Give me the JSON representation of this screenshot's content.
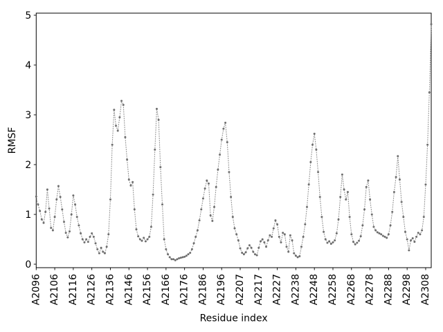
{
  "figure": {
    "background": "#ffffff",
    "spine_color": "#000000",
    "line_color": "#8f8f8f",
    "marker_color": "#6e6e6e",
    "text_color": "#000000"
  },
  "chart_data": {
    "type": "line",
    "title": "",
    "xlabel": "Residue index",
    "ylabel": "RMSF",
    "linestyle": "dotted",
    "marker": "point",
    "grid": false,
    "legend": null,
    "ylim": [
      -0.07,
      5.04
    ],
    "y_ticks": [
      0,
      1,
      2,
      3,
      4,
      5
    ],
    "x_tick_step": 10,
    "x_tick_labels": [
      "A2096",
      "A2106",
      "A2116",
      "A2126",
      "A2136",
      "A2146",
      "A2156",
      "A2166",
      "A2176",
      "A2186",
      "A2196",
      "A2207",
      "A2217",
      "A2227",
      "A2238",
      "A2248",
      "A2258",
      "A2268",
      "A2278",
      "A2288",
      "A2298",
      "A2308"
    ],
    "values": [
      1.36,
      1.2,
      1.07,
      0.9,
      0.83,
      1.05,
      1.5,
      1.12,
      0.73,
      0.68,
      0.95,
      1.3,
      1.57,
      1.35,
      1.1,
      0.85,
      0.63,
      0.54,
      0.66,
      1.0,
      1.38,
      1.2,
      0.95,
      0.78,
      0.62,
      0.5,
      0.44,
      0.5,
      0.45,
      0.55,
      0.62,
      0.55,
      0.42,
      0.3,
      0.22,
      0.33,
      0.25,
      0.22,
      0.35,
      0.6,
      1.3,
      2.4,
      3.1,
      2.78,
      2.68,
      2.95,
      3.28,
      3.2,
      2.55,
      2.1,
      1.7,
      1.58,
      1.65,
      1.1,
      0.7,
      0.56,
      0.5,
      0.47,
      0.53,
      0.46,
      0.5,
      0.55,
      0.75,
      1.4,
      2.3,
      3.12,
      2.9,
      1.95,
      1.2,
      0.5,
      0.3,
      0.2,
      0.14,
      0.1,
      0.1,
      0.08,
      0.1,
      0.12,
      0.13,
      0.14,
      0.15,
      0.17,
      0.2,
      0.23,
      0.3,
      0.42,
      0.55,
      0.68,
      0.88,
      1.1,
      1.32,
      1.52,
      1.68,
      1.62,
      0.98,
      0.87,
      1.15,
      1.55,
      1.9,
      2.2,
      2.5,
      2.72,
      2.84,
      2.45,
      1.85,
      1.35,
      0.95,
      0.72,
      0.6,
      0.48,
      0.32,
      0.23,
      0.2,
      0.24,
      0.32,
      0.38,
      0.33,
      0.25,
      0.2,
      0.18,
      0.33,
      0.46,
      0.5,
      0.44,
      0.35,
      0.48,
      0.58,
      0.55,
      0.72,
      0.88,
      0.8,
      0.55,
      0.44,
      0.63,
      0.6,
      0.35,
      0.25,
      0.58,
      0.48,
      0.22,
      0.17,
      0.14,
      0.16,
      0.35,
      0.55,
      0.8,
      1.15,
      1.6,
      2.05,
      2.4,
      2.62,
      2.3,
      1.85,
      1.35,
      0.95,
      0.65,
      0.5,
      0.43,
      0.46,
      0.41,
      0.44,
      0.48,
      0.62,
      0.9,
      1.35,
      1.8,
      1.5,
      1.3,
      1.45,
      0.95,
      0.6,
      0.45,
      0.4,
      0.43,
      0.47,
      0.56,
      0.78,
      1.1,
      1.55,
      1.68,
      1.3,
      1.0,
      0.75,
      0.68,
      0.64,
      0.62,
      0.6,
      0.57,
      0.55,
      0.53,
      0.6,
      0.78,
      1.05,
      1.45,
      1.75,
      2.17,
      1.7,
      1.25,
      0.95,
      0.65,
      0.5,
      0.28,
      0.48,
      0.52,
      0.45,
      0.55,
      0.63,
      0.6,
      0.68,
      0.95,
      1.6,
      2.4,
      3.45,
      4.82
    ]
  }
}
